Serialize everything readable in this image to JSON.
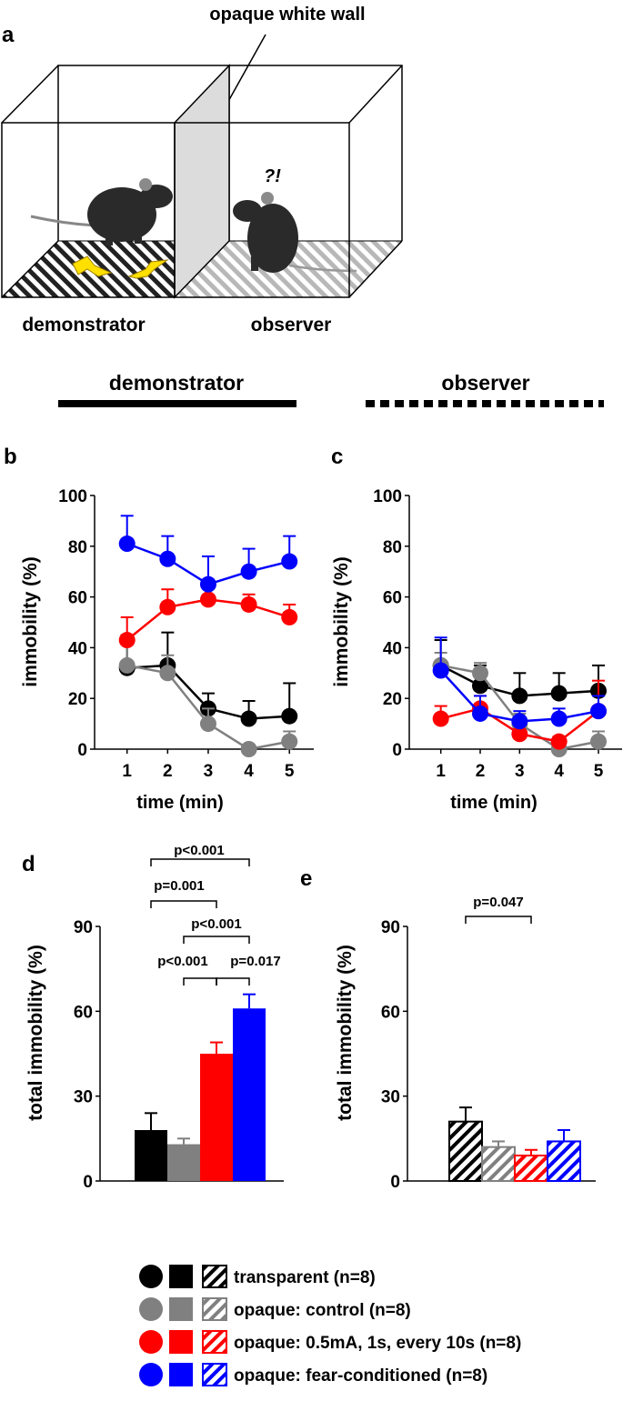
{
  "panel_labels": {
    "a": "a",
    "b": "b",
    "c": "c",
    "d": "d",
    "e": "e"
  },
  "setup": {
    "wall_label": "opaque white wall",
    "question_mark": "?!",
    "demonstrator_label": "demonstrator",
    "observer_label": "observer"
  },
  "line_key": {
    "demonstrator_label": "demonstrator",
    "observer_label": "observer"
  },
  "colors": {
    "transparent": "#000000",
    "control": "#808080",
    "shock": "#ff0000",
    "fear": "#0000ff"
  },
  "chart_data": [
    {
      "panel": "b",
      "type": "line",
      "ylabel": "immobility (%)",
      "xlabel": "time (min)",
      "x": [
        1,
        2,
        3,
        4,
        5
      ],
      "ylim": [
        0,
        100
      ],
      "yticks": [
        0,
        20,
        40,
        60,
        80,
        100
      ],
      "series": [
        {
          "name": "transparent",
          "color": "#000000",
          "values": [
            32,
            33,
            16,
            12,
            13
          ],
          "errors": [
            13,
            13,
            6,
            7,
            13
          ]
        },
        {
          "name": "opaque: control",
          "color": "#808080",
          "values": [
            33,
            30,
            10,
            0,
            3
          ],
          "errors": [
            10,
            7,
            6,
            0,
            4
          ]
        },
        {
          "name": "opaque: 0.5mA, 1s, every 10s",
          "color": "#ff0000",
          "values": [
            43,
            56,
            59,
            57,
            52
          ],
          "errors": [
            9,
            7,
            5,
            4,
            5
          ]
        },
        {
          "name": "opaque: fear-conditioned",
          "color": "#0000ff",
          "values": [
            81,
            75,
            65,
            70,
            74
          ],
          "errors": [
            11,
            9,
            11,
            9,
            10
          ]
        }
      ]
    },
    {
      "panel": "c",
      "type": "line",
      "ylabel": "immobility (%)",
      "xlabel": "time (min)",
      "x": [
        1,
        2,
        3,
        4,
        5
      ],
      "ylim": [
        0,
        100
      ],
      "yticks": [
        0,
        20,
        40,
        60,
        80,
        100
      ],
      "series": [
        {
          "name": "transparent",
          "color": "#000000",
          "values": [
            33,
            25,
            21,
            22,
            23
          ],
          "errors": [
            10,
            8,
            9,
            8,
            10
          ]
        },
        {
          "name": "opaque: control",
          "color": "#808080",
          "values": [
            33,
            30,
            10,
            0,
            3
          ],
          "errors": [
            5,
            4,
            4,
            0,
            4
          ]
        },
        {
          "name": "opaque: 0.5mA, 1s, every 10s",
          "color": "#ff0000",
          "values": [
            12,
            16,
            6,
            3,
            15
          ],
          "errors": [
            5,
            5,
            4,
            2,
            12
          ]
        },
        {
          "name": "opaque: fear-conditioned",
          "color": "#0000ff",
          "values": [
            31,
            14,
            11,
            12,
            15
          ],
          "errors": [
            13,
            7,
            4,
            4,
            6
          ]
        }
      ]
    },
    {
      "panel": "d",
      "type": "bar",
      "ylabel": "total immobility (%)",
      "categories": [
        "transparent",
        "opaque: control",
        "opaque: 0.5mA, 1s, every 10s",
        "opaque: fear-conditioned"
      ],
      "values": [
        18,
        13,
        45,
        61
      ],
      "errors": [
        6,
        2,
        4,
        5
      ],
      "colors": [
        "#000000",
        "#808080",
        "#ff0000",
        "#0000ff"
      ],
      "pattern": "solid",
      "ylim": [
        0,
        90
      ],
      "yticks": [
        0,
        30,
        60,
        90
      ],
      "annotations": [
        {
          "label": "p<0.001",
          "from": 0,
          "to": 3
        },
        {
          "label": "p=0.001",
          "from": 0,
          "to": 2
        },
        {
          "label": "p<0.001",
          "from": 1,
          "to": 3
        },
        {
          "label": "p<0.001",
          "from": 2,
          "to": 1
        },
        {
          "label": "p=0.017",
          "from": 2,
          "to": 3
        }
      ]
    },
    {
      "panel": "e",
      "type": "bar",
      "ylabel": "total immobility (%)",
      "categories": [
        "transparent",
        "opaque: control",
        "opaque: 0.5mA, 1s, every 10s",
        "opaque: fear-conditioned"
      ],
      "values": [
        21,
        12,
        9,
        14
      ],
      "errors": [
        5,
        2,
        2,
        4
      ],
      "colors": [
        "#000000",
        "#808080",
        "#ff0000",
        "#0000ff"
      ],
      "pattern": "hatched",
      "ylim": [
        0,
        90
      ],
      "yticks": [
        0,
        30,
        60,
        90
      ],
      "annotations": [
        {
          "label": "p=0.047",
          "from": 0,
          "to": 2
        }
      ]
    }
  ],
  "legend": [
    {
      "label": "transparent (n=8)",
      "color": "#000000"
    },
    {
      "label": "opaque: control (n=8)",
      "color": "#808080"
    },
    {
      "label": "opaque: 0.5mA, 1s, every 10s (n=8)",
      "color": "#ff0000"
    },
    {
      "label": "opaque: fear-conditioned (n=8)",
      "color": "#0000ff"
    }
  ]
}
